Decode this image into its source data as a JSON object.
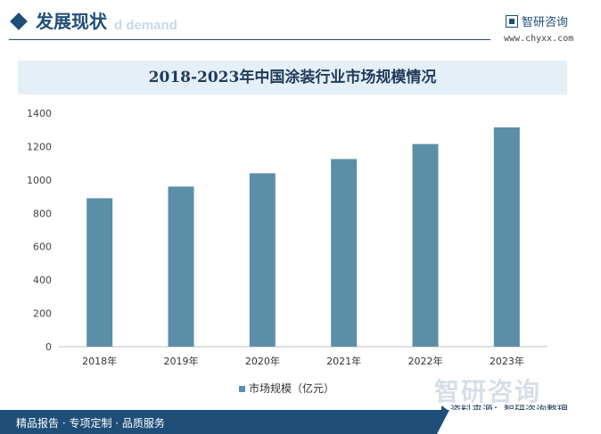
{
  "header": {
    "section_title": "发展现状",
    "section_subtitle": "d demand",
    "logo_name": "智研咨询",
    "logo_url": "www.chyxx.com"
  },
  "chart_data": {
    "type": "bar",
    "title": "2018-2023年中国涂装行业市场规模情况",
    "categories": [
      "2018年",
      "2019年",
      "2020年",
      "2021年",
      "2022年",
      "2023年"
    ],
    "series": [
      {
        "name": "市场规模（亿元）",
        "values": [
          890,
          960,
          1040,
          1125,
          1215,
          1315
        ]
      }
    ],
    "xlabel": "",
    "ylabel": "",
    "ylim": [
      0,
      1400
    ],
    "yticks": [
      0,
      200,
      400,
      600,
      800,
      1000,
      1200,
      1400
    ],
    "bar_color": "#5b8fa8",
    "grid": false,
    "legend_position": "bottom"
  },
  "legend": {
    "label": "市场规模（亿元）"
  },
  "watermark": {
    "text": "智研咨询"
  },
  "source": {
    "text": "资料来源：智研咨询整理"
  },
  "footer": {
    "text": "精品报告 · 专项定制 · 品质服务"
  },
  "colors": {
    "brand": "#1f4e79",
    "bar": "#5b8fa8",
    "title_band": "#e4eff8"
  }
}
